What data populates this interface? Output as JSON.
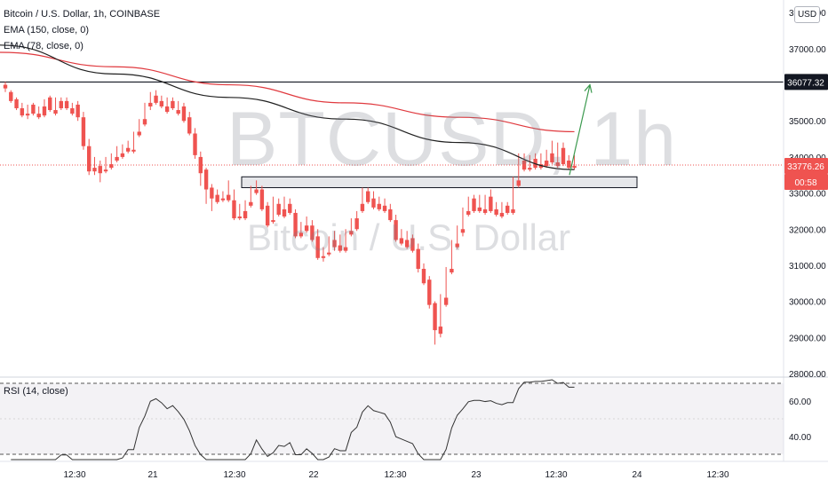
{
  "legend": {
    "title": "Bitcoin / U.S. Dollar, 1h, COINBASE",
    "ema150": "EMA (150, close, 0)",
    "ema78": "EMA (78, close, 0)",
    "rsi": "RSI (14, close)"
  },
  "watermark": {
    "symbol": "BTCUSD, 1h",
    "description": "Bitcoin / U.S. Dollar"
  },
  "currency_badge": "USD",
  "price_tags": {
    "resistance": "36077.32",
    "last_price": "33776.26",
    "countdown": "00:58"
  },
  "colors": {
    "up": "#26a69a",
    "down": "#ef5350",
    "ema150": "#e0393e",
    "ema78": "#202020",
    "arrow": "#3c9a4f",
    "zone_fill": "#e6e7ea",
    "zone_border": "#131722"
  },
  "chart_data": {
    "type": "candlestick",
    "title": "Bitcoin / U.S. Dollar, 1h, COINBASE",
    "price_axis": {
      "ticks": [
        "38000.00",
        "37000.00",
        "36000.00",
        "35000.00",
        "34000.00",
        "33000.00",
        "32000.00",
        "31000.00",
        "30000.00",
        "29000.00",
        "28000.00"
      ],
      "range": [
        27900,
        38350
      ]
    },
    "time_axis": {
      "ticks": [
        "12:30",
        "21",
        "12:30",
        "22",
        "12:30",
        "23",
        "12:30",
        "24",
        "12:30"
      ]
    },
    "resistance_level": 36077.32,
    "last_price": 33776.26,
    "support_zone": [
      33150,
      33450
    ],
    "projection_arrow": {
      "from": 33500,
      "to": 36000
    },
    "candles": [
      [
        36000,
        36080,
        35900,
        35800
      ],
      [
        35800,
        35850,
        35550,
        35500
      ],
      [
        35600,
        35650,
        35350,
        35300
      ],
      [
        35350,
        35500,
        35150,
        35100
      ],
      [
        35200,
        35450,
        35150,
        35050
      ],
      [
        35450,
        35500,
        35200,
        35150
      ],
      [
        35200,
        35400,
        35100,
        35050
      ],
      [
        35400,
        35600,
        35150,
        35100
      ],
      [
        35650,
        35700,
        35300,
        35250
      ],
      [
        35300,
        35650,
        35200,
        35150
      ],
      [
        35550,
        35650,
        35350,
        35300
      ],
      [
        35550,
        35650,
        35350,
        35300
      ],
      [
        35350,
        35500,
        35200,
        35150
      ],
      [
        35450,
        35550,
        35100,
        35000
      ],
      [
        35100,
        35250,
        34300,
        34200
      ],
      [
        34300,
        34500,
        33600,
        33500
      ],
      [
        33700,
        34000,
        33600,
        33500
      ],
      [
        33750,
        33900,
        33550,
        33300
      ],
      [
        33650,
        34000,
        33600,
        33550
      ],
      [
        33800,
        34100,
        33700,
        33650
      ],
      [
        34000,
        34300,
        33900,
        33850
      ],
      [
        34100,
        34350,
        34000,
        33950
      ],
      [
        34250,
        34450,
        34150,
        34100
      ],
      [
        34200,
        34700,
        34150,
        34100
      ],
      [
        34700,
        35050,
        34600,
        34550
      ],
      [
        35050,
        35500,
        34900,
        34850
      ],
      [
        35500,
        35800,
        35400,
        35300
      ],
      [
        35700,
        35850,
        35500,
        35450
      ],
      [
        35550,
        35700,
        35400,
        35350
      ],
      [
        35400,
        35650,
        35250,
        35200
      ],
      [
        35550,
        35650,
        35350,
        35300
      ],
      [
        35300,
        35550,
        35200,
        35150
      ],
      [
        35400,
        35500,
        35000,
        34950
      ],
      [
        35100,
        35250,
        34650,
        34600
      ],
      [
        34650,
        34800,
        34050,
        33950
      ],
      [
        34000,
        34150,
        33550,
        33200
      ],
      [
        33650,
        33700,
        33100,
        32700
      ],
      [
        33150,
        33250,
        32850,
        32500
      ],
      [
        32950,
        33100,
        32750,
        32700
      ],
      [
        32850,
        33050,
        32800,
        32750
      ],
      [
        32950,
        33350,
        32800,
        32750
      ],
      [
        32800,
        33100,
        32300,
        32250
      ],
      [
        32350,
        32700,
        32300,
        32250
      ],
      [
        32500,
        32800,
        32300,
        32250
      ],
      [
        32750,
        33200,
        32650,
        32600
      ],
      [
        33100,
        33350,
        33000,
        32950
      ],
      [
        33100,
        33200,
        32550,
        32500
      ],
      [
        32650,
        32750,
        32100,
        32050
      ],
      [
        32250,
        32900,
        32200,
        32150
      ],
      [
        32700,
        32850,
        32400,
        32350
      ],
      [
        32550,
        32900,
        32350,
        32300
      ],
      [
        32700,
        32850,
        32450,
        32400
      ],
      [
        32450,
        32550,
        31800,
        31750
      ],
      [
        31900,
        32200,
        31800,
        31750
      ],
      [
        32100,
        32350,
        31950,
        31900
      ],
      [
        32100,
        32250,
        31700,
        31650
      ],
      [
        31800,
        32000,
        31200,
        31150
      ],
      [
        31250,
        31500,
        31200,
        31100
      ],
      [
        31350,
        31800,
        31300,
        31250
      ],
      [
        31700,
        31950,
        31500,
        31400
      ],
      [
        31550,
        31850,
        31400,
        31350
      ],
      [
        31500,
        32000,
        31400,
        31350
      ],
      [
        31950,
        32300,
        31850,
        31800
      ],
      [
        32300,
        32500,
        32000,
        31950
      ],
      [
        32700,
        33150,
        32500,
        32450
      ],
      [
        33050,
        33150,
        32750,
        32700
      ],
      [
        32850,
        33050,
        32600,
        32550
      ],
      [
        32700,
        32900,
        32550,
        32500
      ],
      [
        32650,
        32850,
        32500,
        32450
      ],
      [
        32550,
        32700,
        32250,
        32200
      ],
      [
        32250,
        32400,
        31700,
        31650
      ],
      [
        31750,
        32000,
        31600,
        31550
      ],
      [
        31700,
        31950,
        31500,
        31450
      ],
      [
        31750,
        31850,
        31400,
        31350
      ],
      [
        31450,
        31600,
        30900,
        30800
      ],
      [
        30900,
        31050,
        30500,
        30450
      ],
      [
        30600,
        30700,
        29900,
        29800
      ],
      [
        29950,
        30000,
        29200,
        28800
      ],
      [
        29300,
        30200,
        29100,
        29000
      ],
      [
        30100,
        30950,
        29900,
        29850
      ],
      [
        30900,
        31700,
        30800,
        30750
      ],
      [
        31600,
        32100,
        31500,
        31450
      ],
      [
        32000,
        32600,
        31900,
        31800
      ],
      [
        32500,
        32900,
        32400,
        32350
      ],
      [
        32850,
        32950,
        32500,
        32450
      ],
      [
        32600,
        32950,
        32500,
        32450
      ],
      [
        32550,
        32950,
        32450,
        32400
      ],
      [
        32900,
        33100,
        32500,
        32450
      ],
      [
        32550,
        32750,
        32400,
        32350
      ],
      [
        32450,
        32750,
        32350,
        32300
      ],
      [
        32650,
        32750,
        32450,
        32400
      ],
      [
        32550,
        33450,
        32450,
        32400
      ],
      [
        33350,
        34100,
        33200,
        33150
      ],
      [
        33900,
        34100,
        33650,
        33600
      ],
      [
        33700,
        34050,
        33650,
        33600
      ],
      [
        33950,
        34100,
        33700,
        33650
      ],
      [
        33800,
        34100,
        33700,
        33650
      ],
      [
        33900,
        34200,
        33750,
        33700
      ],
      [
        34100,
        34450,
        33850,
        33800
      ],
      [
        33850,
        34400,
        33750,
        33700
      ],
      [
        34250,
        34400,
        33800,
        33750
      ],
      [
        33900,
        34050,
        33700,
        33650
      ],
      [
        33750,
        34050,
        33700,
        33650
      ]
    ],
    "ema150": [
      36900,
      36500,
      36000,
      35500,
      35100,
      34700
    ],
    "ema78": [
      37100,
      36300,
      35650,
      35050,
      34400,
      33650
    ],
    "rsi": {
      "ticks": [
        "60.00",
        "40.00"
      ],
      "range": [
        26,
        73
      ],
      "bands": [
        70,
        30
      ]
    }
  }
}
